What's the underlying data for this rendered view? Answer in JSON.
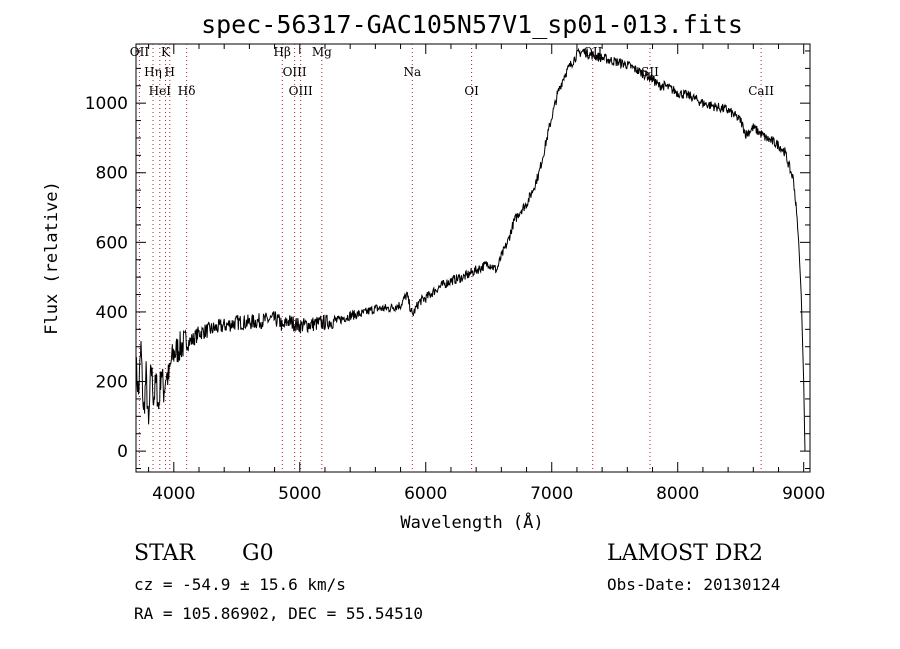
{
  "chart_data": {
    "type": "line",
    "title": "spec-56317-GAC105N57V1_sp01-013.fits",
    "xlabel": "Wavelength (Å)",
    "ylabel": "Flux (relative)",
    "xlim": [
      3700,
      9050
    ],
    "ylim": [
      -60,
      1170
    ],
    "xticks": [
      4000,
      5000,
      6000,
      7000,
      8000,
      9000
    ],
    "yticks": [
      0,
      200,
      400,
      600,
      800,
      1000
    ],
    "grid": false,
    "series": [
      {
        "x": [
          3700,
          3720,
          3740,
          3760,
          3780,
          3800,
          3820,
          3840,
          3860,
          3880,
          3900,
          3920,
          3940,
          3960,
          3980,
          4000,
          4050,
          4100,
          4150,
          4200,
          4300,
          4400,
          4500,
          4600,
          4700,
          4800,
          4850,
          4862,
          4900,
          5000,
          5100,
          5200,
          5300,
          5400,
          5500,
          5600,
          5700,
          5800,
          5850,
          5893,
          5950,
          6000,
          6100,
          6200,
          6300,
          6400,
          6500,
          6563,
          6600,
          6650,
          6700,
          6750,
          6800,
          6850,
          6900,
          6950,
          7000,
          7050,
          7100,
          7150,
          7200,
          7250,
          7300,
          7400,
          7500,
          7600,
          7700,
          7800,
          7850,
          7900,
          8000,
          8100,
          8200,
          8300,
          8400,
          8500,
          8542,
          8600,
          8700,
          8800,
          8850,
          8900,
          8920,
          8940,
          8960,
          8980,
          9000,
          9010
        ],
        "y": [
          250,
          160,
          300,
          100,
          220,
          60,
          250,
          150,
          200,
          120,
          240,
          170,
          220,
          210,
          260,
          280,
          300,
          310,
          320,
          340,
          350,
          360,
          370,
          370,
          375,
          380,
          370,
          350,
          375,
          360,
          365,
          370,
          375,
          390,
          395,
          410,
          410,
          420,
          450,
          390,
          430,
          440,
          470,
          490,
          500,
          520,
          540,
          520,
          560,
          600,
          660,
          690,
          710,
          750,
          800,
          880,
          960,
          1030,
          1080,
          1110,
          1140,
          1150,
          1140,
          1130,
          1120,
          1110,
          1090,
          1070,
          1050,
          1050,
          1030,
          1020,
          1000,
          990,
          980,
          950,
          910,
          930,
          900,
          880,
          860,
          800,
          780,
          700,
          600,
          450,
          200,
          0
        ]
      }
    ],
    "lines": [
      {
        "label": "OII",
        "x": 3727
      },
      {
        "label": "Hη",
        "x": 3835
      },
      {
        "label": "HeI",
        "x": 3889
      },
      {
        "label": "K",
        "x": 3934
      },
      {
        "label": "H",
        "x": 3968
      },
      {
        "label": "Hδ",
        "x": 4102
      },
      {
        "label": "Hβ",
        "x": 4861
      },
      {
        "label": "OIII",
        "x": 4959
      },
      {
        "label": "OIII",
        "x": 5007
      },
      {
        "label": "Mg",
        "x": 5175
      },
      {
        "label": "Na",
        "x": 5893
      },
      {
        "label": "OI",
        "x": 6364
      },
      {
        "label": "OII",
        "x": 7325
      },
      {
        "label": "SII",
        "x": 7780
      },
      {
        "label": "CaII",
        "x": 8662
      }
    ]
  },
  "info": {
    "class_label": "STAR",
    "subclass_label": "G0",
    "survey_label": "LAMOST DR2",
    "cz_text": "cz = -54.9 ± 15.6 km/s",
    "obs_date_text": "Obs-Date: 20130124",
    "radec_text": "RA = 105.86902, DEC =  55.54510"
  }
}
